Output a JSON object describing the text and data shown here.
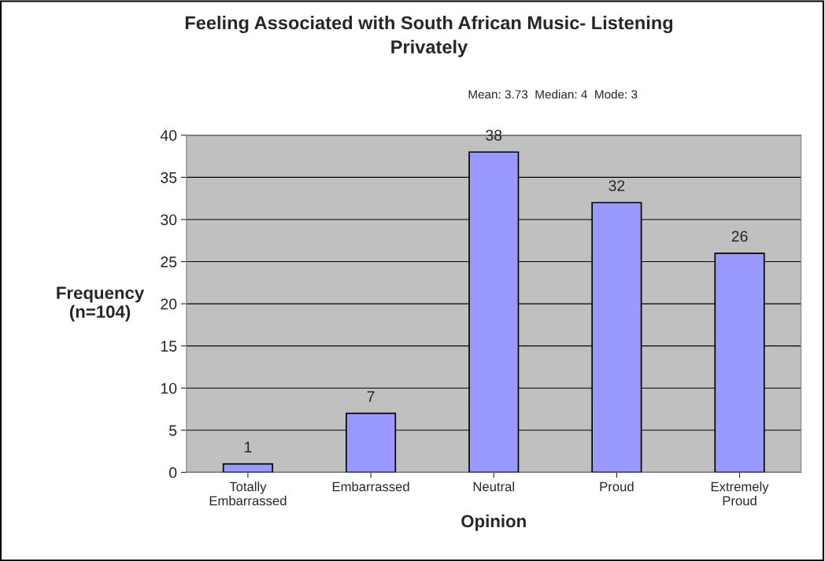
{
  "chart_data": {
    "type": "bar",
    "title": "Feeling Associated with South African Music- Listening\nPrivately",
    "xlabel": "Opinion",
    "ylabel": "Frequency\n(n=104)",
    "annotations": [
      "Mean: 3.73  Median: 4  Mode: 3"
    ],
    "categories": [
      "Totally\nEmbarrassed",
      "Embarrassed",
      "Neutral",
      "Proud",
      "Extremely\nProud"
    ],
    "values": [
      1,
      7,
      38,
      32,
      26
    ],
    "color": "#9999ff",
    "ylim": [
      0,
      40
    ],
    "yticks": [
      0,
      5,
      10,
      15,
      20,
      25,
      30,
      35,
      40
    ],
    "grid": "y",
    "data_labels": true
  }
}
